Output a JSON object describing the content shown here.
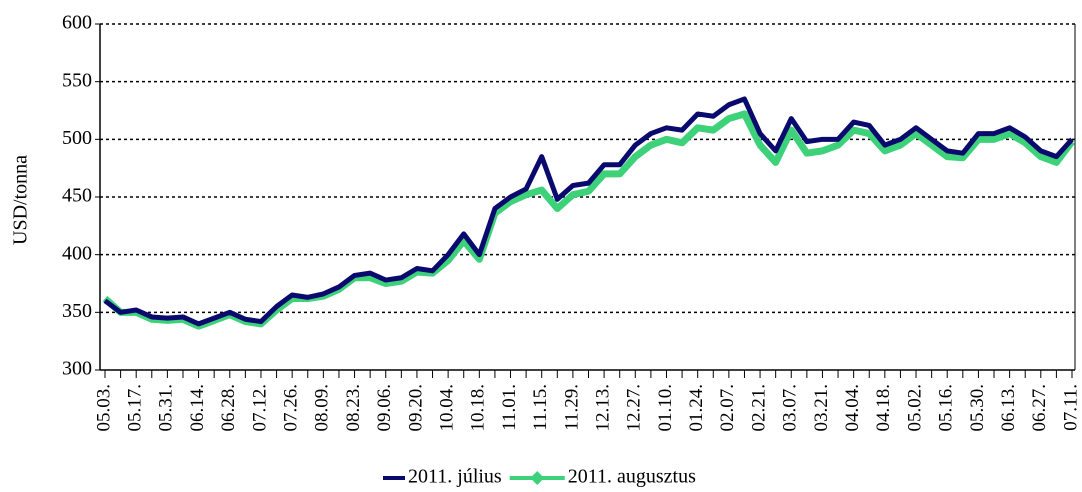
{
  "chart_data": {
    "type": "line",
    "y_label": "USD/tonna",
    "categories": [
      "05.03.",
      null,
      "05.17.",
      null,
      "05.31.",
      null,
      "06.14.",
      null,
      "06.28.",
      null,
      "07.12.",
      null,
      "07.26.",
      null,
      "08.09.",
      null,
      "08.23.",
      null,
      "09.06.",
      null,
      "09.20.",
      null,
      "10.04.",
      null,
      "10.18.",
      null,
      "11.01.",
      null,
      "11.15.",
      null,
      "11.29.",
      null,
      "12.13.",
      null,
      "12.27.",
      null,
      "01.10.",
      null,
      "01.24.",
      null,
      "02.07.",
      null,
      "02.21.",
      null,
      "03.07.",
      null,
      "03.21.",
      null,
      "04.04.",
      null,
      "04.18.",
      null,
      "05.02.",
      null,
      "05.16.",
      null,
      "05.30.",
      null,
      "06.13.",
      null,
      "06.27.",
      null,
      "07.11."
    ],
    "series": [
      {
        "name": "2011. augusztus",
        "color": "#3dd27a",
        "marker": "diamond",
        "values": [
          362,
          350,
          350,
          344,
          343,
          344,
          338,
          343,
          348,
          342,
          340,
          352,
          362,
          362,
          364,
          370,
          380,
          380,
          375,
          377,
          385,
          384,
          395,
          412,
          396,
          436,
          446,
          452,
          456,
          440,
          452,
          455,
          470,
          470,
          485,
          495,
          500,
          497,
          510,
          508,
          518,
          522,
          495,
          480,
          508,
          488,
          490,
          495,
          508,
          505,
          490,
          495,
          505,
          495,
          485,
          484,
          500,
          500,
          505,
          497,
          485,
          480,
          498
        ]
      },
      {
        "name": "2011. július",
        "color": "#0a0a6e",
        "marker": "none",
        "values": [
          360,
          350,
          352,
          346,
          345,
          346,
          340,
          345,
          350,
          344,
          342,
          355,
          365,
          363,
          366,
          372,
          382,
          384,
          378,
          380,
          388,
          386,
          400,
          418,
          400,
          440,
          450,
          457,
          485,
          448,
          460,
          462,
          478,
          478,
          495,
          505,
          510,
          508,
          522,
          520,
          530,
          535,
          505,
          490,
          518,
          498,
          500,
          500,
          515,
          512,
          495,
          500,
          510,
          500,
          490,
          488,
          505,
          505,
          510,
          502,
          490,
          485,
          500
        ]
      }
    ],
    "ylim": [
      300,
      600
    ],
    "yticks": [
      300,
      350,
      400,
      450,
      500,
      550,
      600
    ],
    "grid": true,
    "grid_style": "dotted",
    "legend": "bottom"
  }
}
